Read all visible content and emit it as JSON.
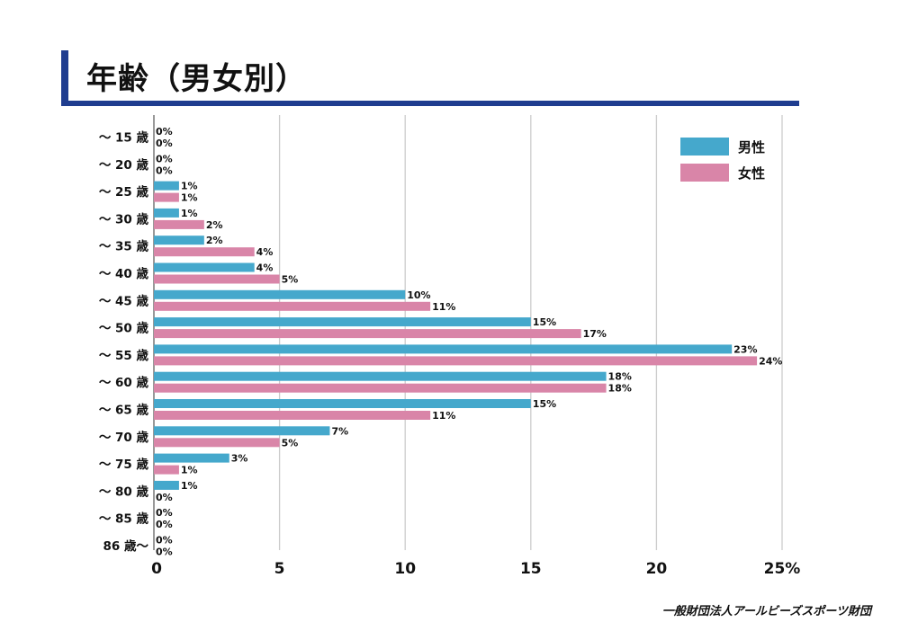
{
  "title": "年齢（男女別）",
  "footer": "一般財団法人アールビーズスポーツ財団",
  "colors": {
    "accent": "#1f3d8f",
    "male": "#45a8cc",
    "female": "#d985a8",
    "grid": "#cccccc"
  },
  "chart_data": {
    "type": "bar",
    "orientation": "horizontal",
    "categories": [
      "～ 15 歳",
      "～ 20 歳",
      "～ 25 歳",
      "～ 30 歳",
      "～ 35 歳",
      "～ 40 歳",
      "～ 45 歳",
      "～ 50 歳",
      "～ 55 歳",
      "～ 60 歳",
      "～ 65 歳",
      "～ 70 歳",
      "～ 75 歳",
      "～ 80 歳",
      "～ 85 歳",
      "86 歳～"
    ],
    "series": [
      {
        "name": "男性",
        "values": [
          0,
          0,
          1,
          1,
          2,
          4,
          10,
          15,
          23,
          18,
          15,
          7,
          3,
          1,
          0,
          0
        ],
        "labels": [
          "0%",
          "0%",
          "1%",
          "1%",
          "2%",
          "4%",
          "10%",
          "15%",
          "23%",
          "18%",
          "15%",
          "7%",
          "3%",
          "1%",
          "0%",
          "0%"
        ]
      },
      {
        "name": "女性",
        "values": [
          0,
          0,
          1,
          2,
          4,
          5,
          11,
          17,
          24,
          18,
          11,
          5,
          1,
          0,
          0,
          0
        ],
        "labels": [
          "0%",
          "0%",
          "1%",
          "2%",
          "4%",
          "5%",
          "11%",
          "17%",
          "24%",
          "18%",
          "11%",
          "5%",
          "1%",
          "0%",
          "0%",
          "0%"
        ]
      }
    ],
    "xlim": [
      0,
      25
    ],
    "xticks": [
      "0",
      "5",
      "10",
      "15",
      "20",
      "25%"
    ],
    "grid": true,
    "legend": "top-right"
  }
}
